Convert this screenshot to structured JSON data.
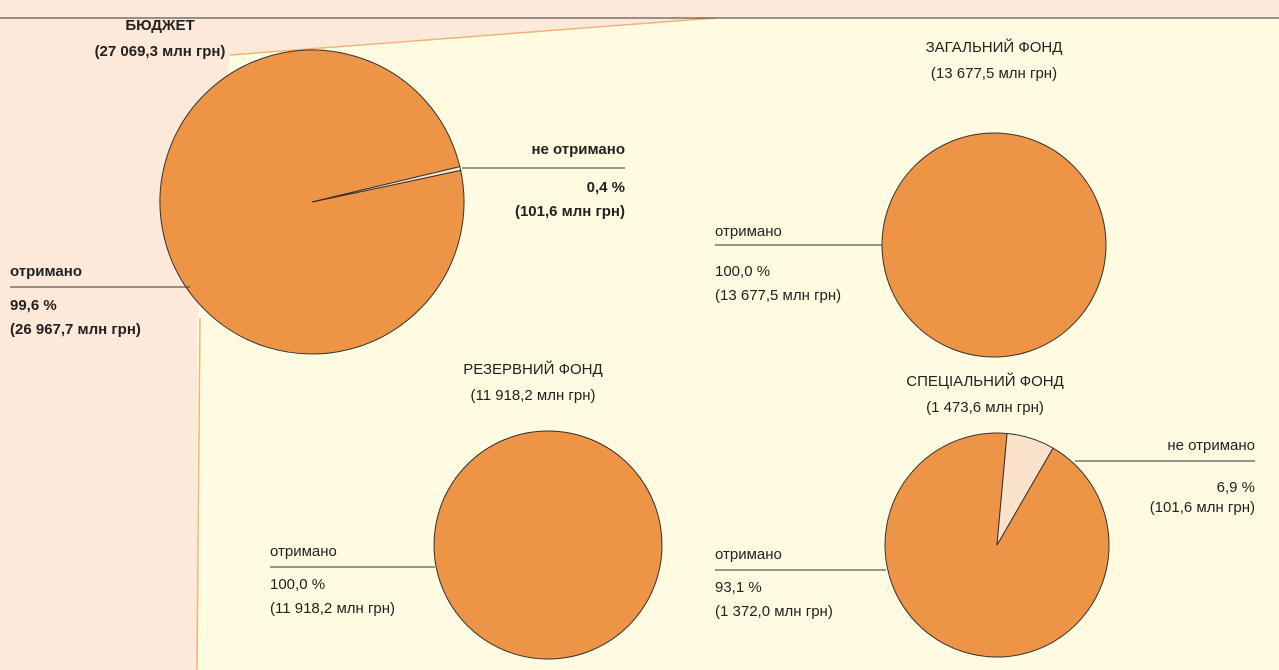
{
  "chart_data": [
    {
      "type": "pie",
      "title": "БЮДЖЕТ",
      "subtitle": "(27 069,3 млн грн)",
      "categories": [
        "отримано",
        "не отримано"
      ],
      "values": [
        99.6,
        0.4
      ],
      "value_labels": [
        "99,6 %",
        "0,4 %"
      ],
      "amounts": [
        "(26 967,7 млн грн)",
        "(101,6 млн грн)"
      ],
      "colors": [
        "#ee9447",
        "#fbe3cb"
      ]
    },
    {
      "type": "pie",
      "title": "ЗАГАЛЬНИЙ ФОНД",
      "subtitle": "(13 677,5 млн грн)",
      "categories": [
        "отримано"
      ],
      "values": [
        100
      ],
      "value_labels": [
        "100,0 %"
      ],
      "amounts": [
        "(13 677,5 млн грн)"
      ],
      "colors": [
        "#ee9447"
      ]
    },
    {
      "type": "pie",
      "title": "РЕЗЕРВНИЙ ФОНД",
      "subtitle": "(11 918,2 млн грн)",
      "categories": [
        "отримано"
      ],
      "values": [
        100
      ],
      "value_labels": [
        "100,0 %"
      ],
      "amounts": [
        "(11 918,2 млн грн)"
      ],
      "colors": [
        "#ee9447"
      ]
    },
    {
      "type": "pie",
      "title": "СПЕЦІАЛЬНИЙ ФОНД",
      "subtitle": "(1 473,6 млн грн)",
      "categories": [
        "отримано",
        "не отримано"
      ],
      "values": [
        93.1,
        6.9
      ],
      "value_labels": [
        "93,1 %",
        "6,9 %"
      ],
      "amounts": [
        "(1 372,0 млн грн)",
        "(101,6 млн грн)"
      ],
      "colors": [
        "#ee9447",
        "#fbe3cb"
      ]
    }
  ]
}
